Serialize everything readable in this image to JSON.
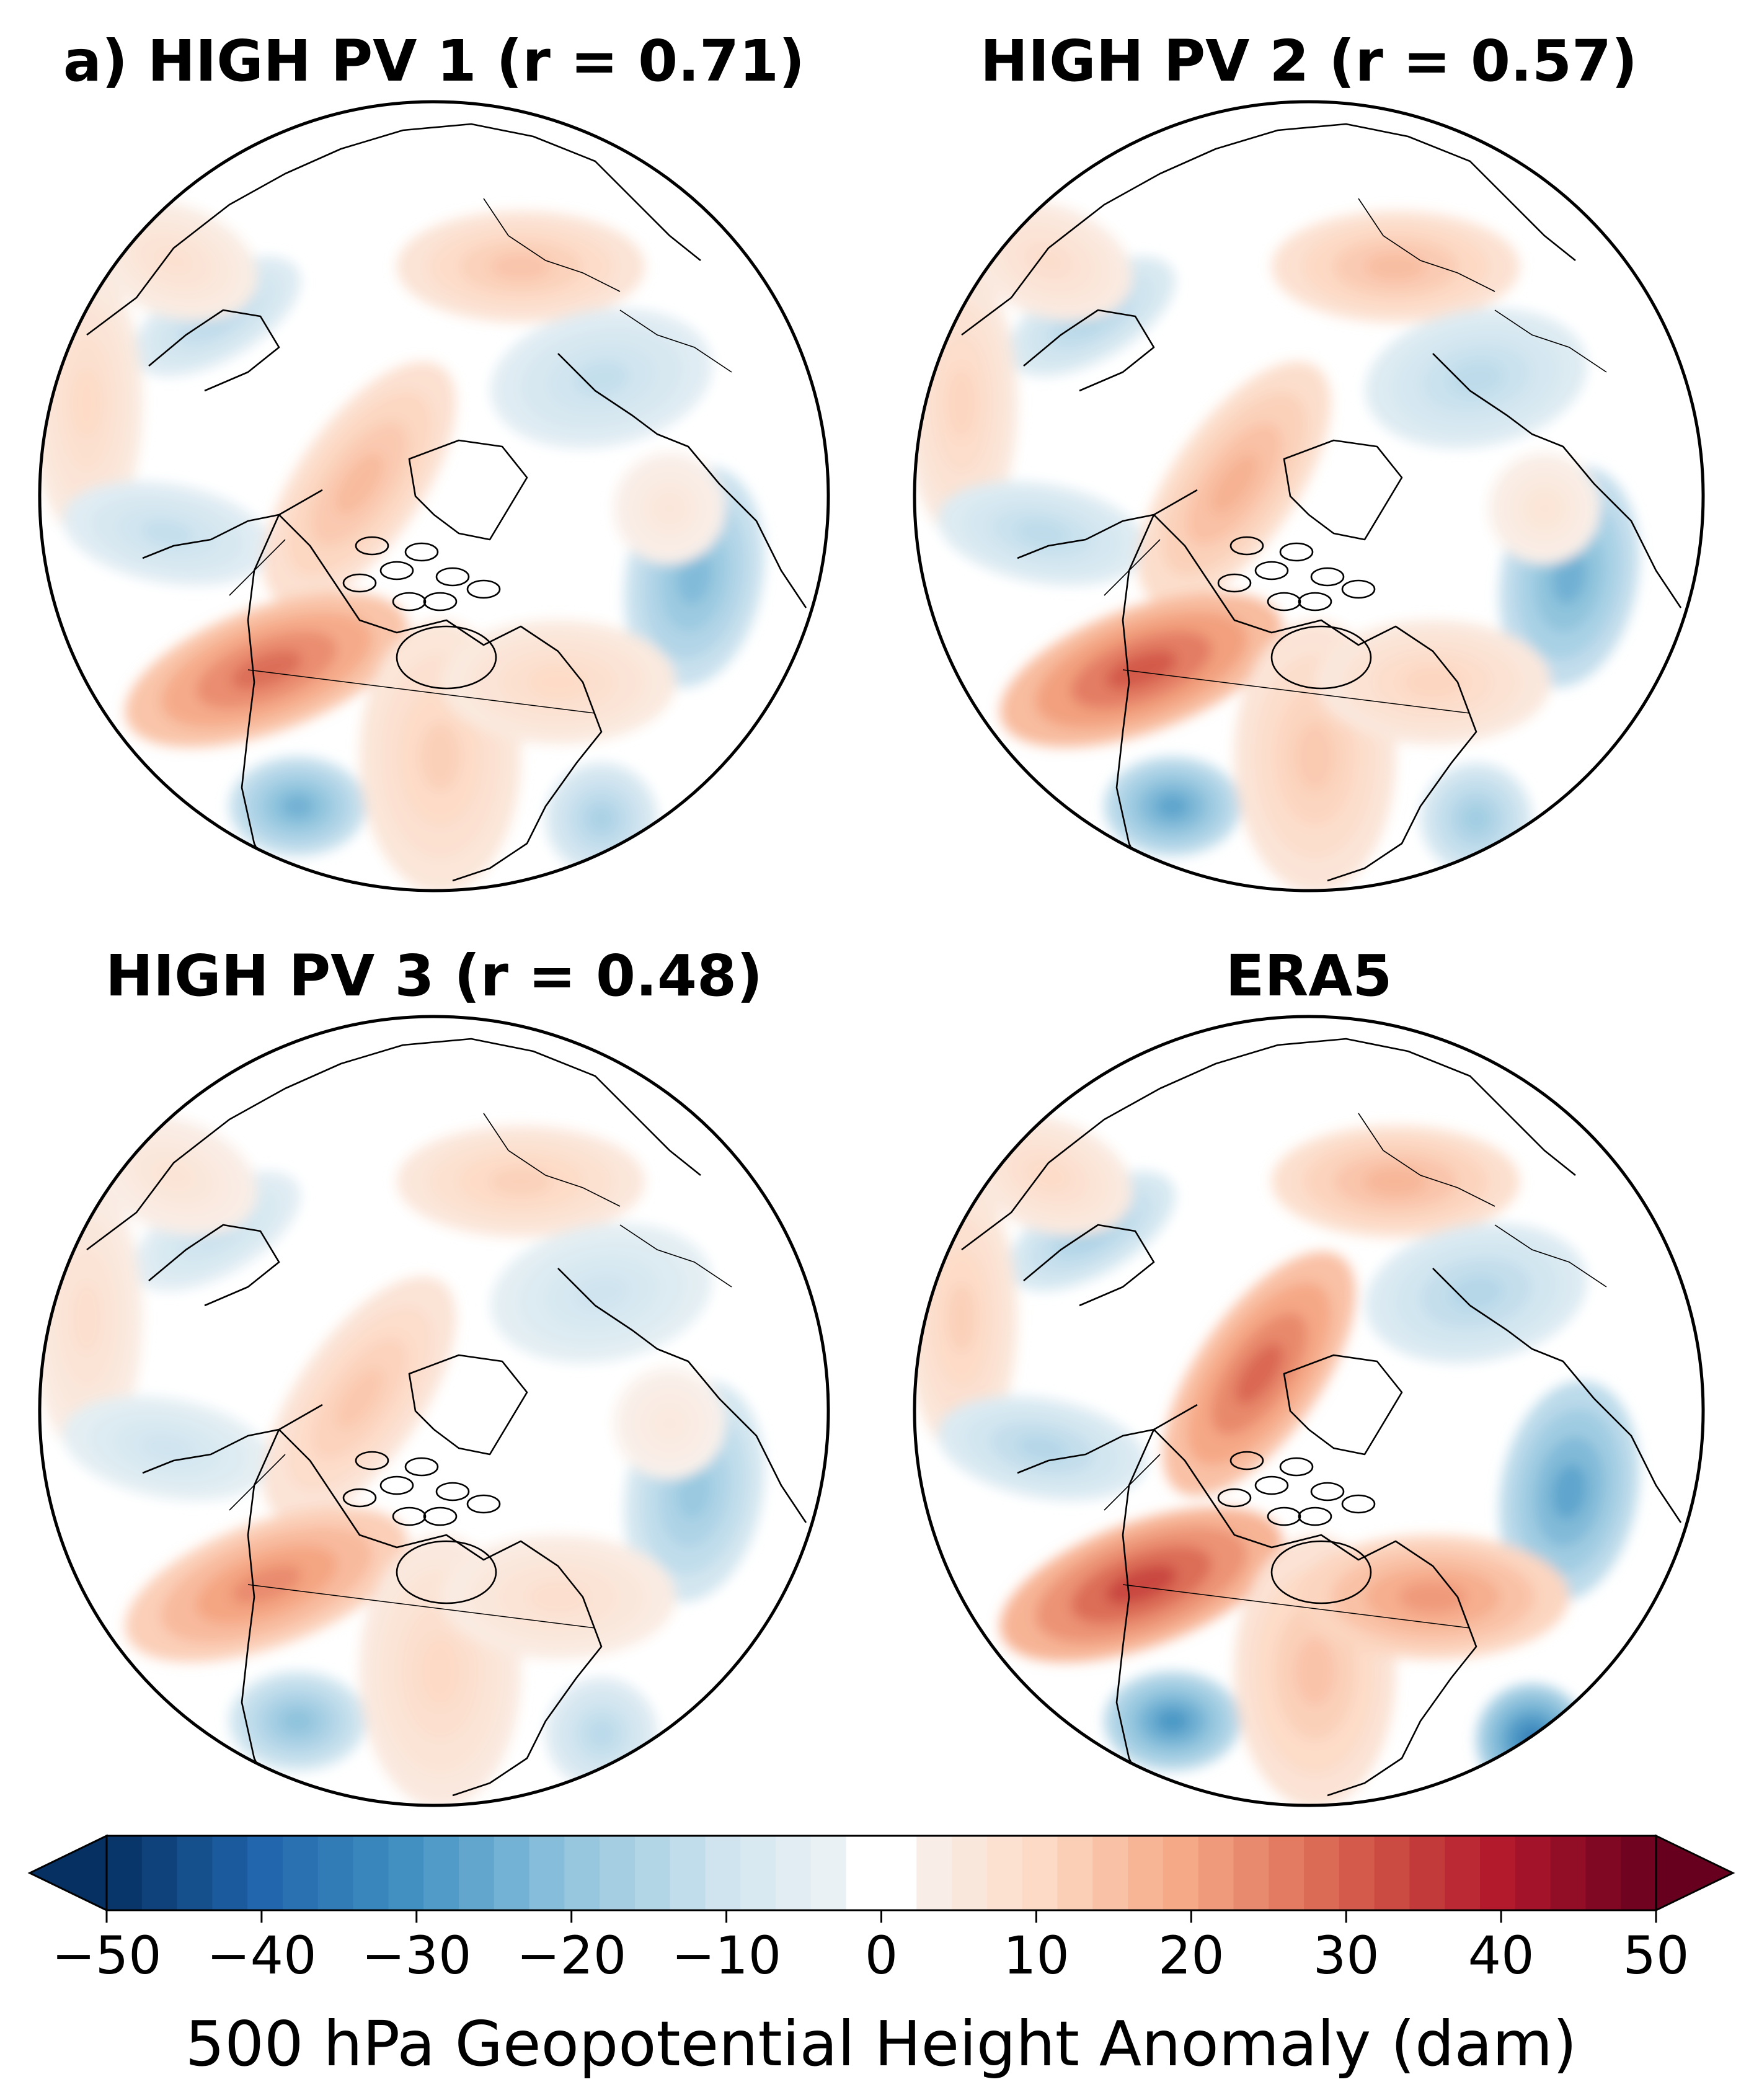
{
  "panels": [
    {
      "title": "a) HIGH PV 1 (r = 0.71)",
      "r": 0.71
    },
    {
      "title": "HIGH PV 2 (r = 0.57)",
      "r": 0.57
    },
    {
      "title": "HIGH PV 3 (r = 0.48)",
      "r": 0.48
    },
    {
      "title": "ERA5"
    }
  ],
  "colorbar": {
    "label": "500 hPa Geopotential Height Anomaly (dam)",
    "ticks": [
      "−50",
      "−40",
      "−30",
      "−20",
      "−10",
      "0",
      "10",
      "20",
      "30",
      "40",
      "50"
    ],
    "min": -50,
    "max": 50,
    "colormap": "RdBu_r",
    "extend": "both"
  },
  "colors": {
    "neg_strong": "#053061",
    "neg_mid": "#4393c3",
    "neutral": "#ffffff",
    "pos_mid": "#d6604d",
    "pos_strong": "#67001f"
  }
}
